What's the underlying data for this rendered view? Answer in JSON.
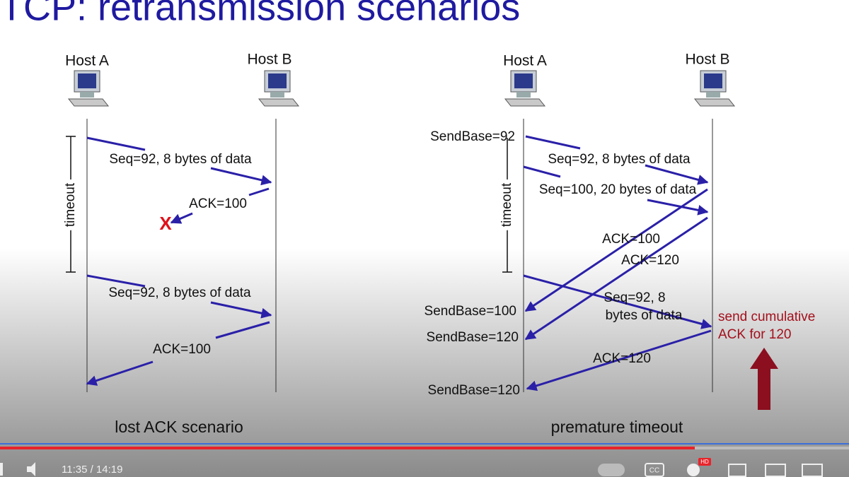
{
  "slide": {
    "title": "TCP: retransmission scenarios",
    "left": {
      "host_a": "Host A",
      "host_b": "Host B",
      "timeout": "timeout",
      "messages": [
        "Seq=92, 8 bytes of data",
        "ACK=100",
        "Seq=92, 8 bytes of data",
        "ACK=100"
      ],
      "lost_mark": "X",
      "caption": "lost ACK scenario"
    },
    "right": {
      "host_a": "Host A",
      "host_b": "Host B",
      "timeout": "timeout",
      "send_base": [
        "SendBase=92",
        "SendBase=100",
        "SendBase=120",
        "SendBase=120"
      ],
      "messages": [
        "Seq=92, 8 bytes of data",
        "Seq=100, 20 bytes of data",
        "ACK=100",
        "ACK=120",
        "Seq=92,  8",
        "bytes of data",
        "ACK=120"
      ],
      "note": [
        "send cumulative",
        "ACK for 120"
      ],
      "caption": "premature timeout"
    }
  },
  "player": {
    "time": "11:35 / 14:19",
    "hd": "HD",
    "cc": "CC"
  }
}
